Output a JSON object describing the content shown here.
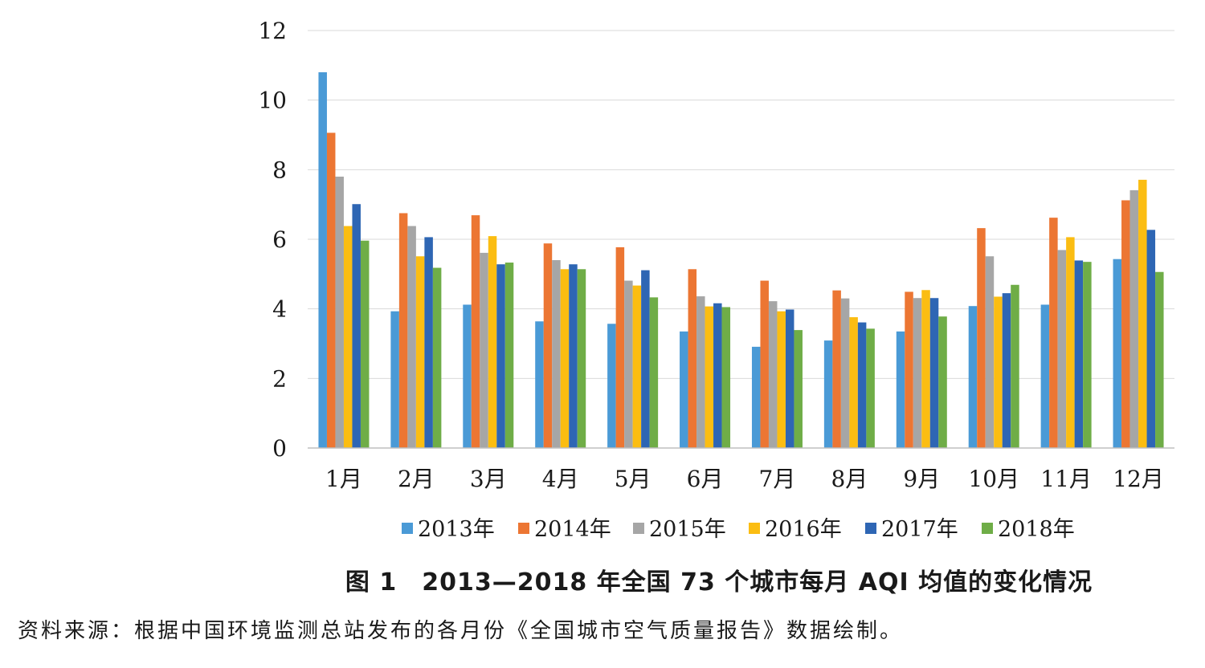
{
  "chart_data": {
    "type": "bar",
    "categories": [
      "1月",
      "2月",
      "3月",
      "4月",
      "5月",
      "6月",
      "7月",
      "8月",
      "9月",
      "10月",
      "11月",
      "12月"
    ],
    "series": [
      {
        "name": "2013年",
        "color": "#4a9ad6",
        "values": [
          10.8,
          3.93,
          4.12,
          3.64,
          3.57,
          3.35,
          2.91,
          3.09,
          3.35,
          4.08,
          4.12,
          5.43
        ]
      },
      {
        "name": "2014年",
        "color": "#ec7633",
        "values": [
          9.06,
          6.75,
          6.69,
          5.88,
          5.77,
          5.14,
          4.81,
          4.53,
          4.49,
          6.32,
          6.62,
          7.12
        ]
      },
      {
        "name": "2015年",
        "color": "#a6a6a6",
        "values": [
          7.8,
          6.38,
          5.61,
          5.4,
          4.81,
          4.36,
          4.22,
          4.3,
          4.31,
          5.51,
          5.69,
          7.41
        ]
      },
      {
        "name": "2016年",
        "color": "#fbbd12",
        "values": [
          6.38,
          5.51,
          6.09,
          5.14,
          4.67,
          4.07,
          3.93,
          3.76,
          4.54,
          4.35,
          6.06,
          7.71
        ]
      },
      {
        "name": "2017年",
        "color": "#2e66b4",
        "values": [
          7.01,
          6.06,
          5.28,
          5.28,
          5.11,
          4.16,
          3.98,
          3.61,
          4.31,
          4.45,
          5.39,
          6.27
        ]
      },
      {
        "name": "2018年",
        "color": "#6fad47",
        "values": [
          5.96,
          5.18,
          5.33,
          5.14,
          4.33,
          4.05,
          3.39,
          3.43,
          3.78,
          4.69,
          5.35,
          5.06
        ]
      }
    ],
    "ylim": [
      0,
      12
    ],
    "yticks": [
      "0",
      "2",
      "4",
      "6",
      "8",
      "10",
      "12"
    ],
    "grid": true,
    "legend": "bottom"
  },
  "caption": "图 1　2013—2018 年全国 73 个城市每月 AQI 均值的变化情况",
  "source": "资料来源：根据中国环境监测总站发布的各月份《全国城市空气质量报告》数据绘制。"
}
